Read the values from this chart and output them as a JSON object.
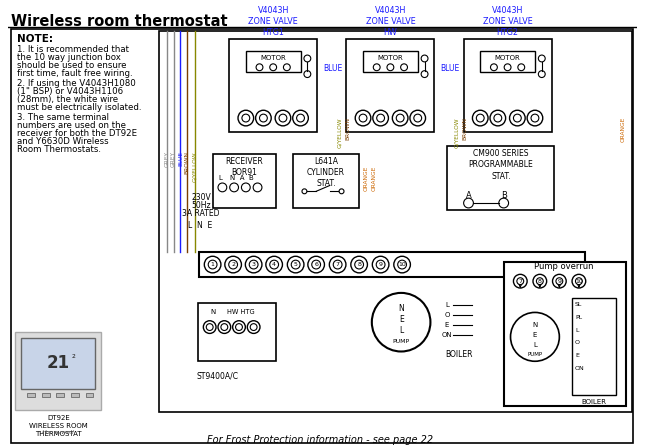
{
  "title": "Wireless room thermostat",
  "bg_color": "#ffffff",
  "note_title": "NOTE:",
  "note_lines": [
    "1. It is recommended that",
    "the 10 way junction box",
    "should be used to ensure",
    "first time, fault free wiring.",
    "2. If using the V4043H1080",
    "(1\" BSP) or V4043H1106",
    "(28mm), the white wire",
    "must be electrically isolated.",
    "3. The same terminal",
    "numbers are used on the",
    "receiver for both the DT92E",
    "and Y6630D Wireless",
    "Room Thermostats."
  ],
  "zv_labels": [
    "V4043H\nZONE VALVE\nHTG1",
    "V4043H\nZONE VALVE\nHW",
    "V4043H\nZONE VALVE\nHTG2"
  ],
  "blue": "#1a1aff",
  "orange": "#cc6600",
  "grey": "#888888",
  "brown": "#7B3F00",
  "gyellow": "#888800",
  "black": "#000000",
  "frost_note": "For Frost Protection information - see page 22",
  "dt92e_label": "DT92E\nWIRELESS ROOM\nTHERMOSTAT"
}
